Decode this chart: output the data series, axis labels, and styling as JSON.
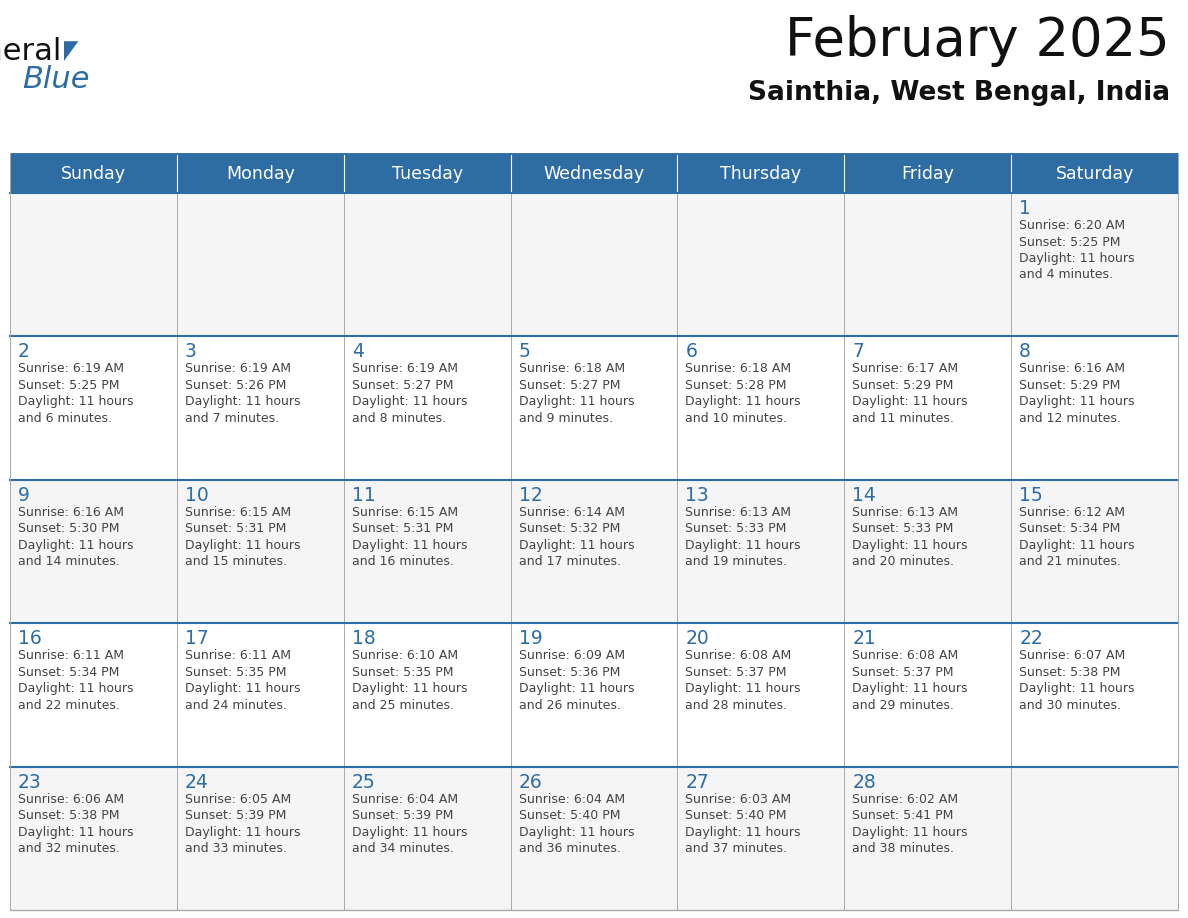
{
  "title": "February 2025",
  "subtitle": "Sainthia, West Bengal, India",
  "header_bg": "#2E6DA4",
  "header_text_color": "#FFFFFF",
  "cell_bg_light": "#F5F5F5",
  "cell_bg_white": "#FFFFFF",
  "day_number_color": "#2E6DA4",
  "text_color": "#444444",
  "border_color": "#AAAAAA",
  "line_color": "#2E6DA4",
  "days_of_week": [
    "Sunday",
    "Monday",
    "Tuesday",
    "Wednesday",
    "Thursday",
    "Friday",
    "Saturday"
  ],
  "weeks": [
    [
      {
        "day": null,
        "sunrise": null,
        "sunset": null,
        "daylight": null
      },
      {
        "day": null,
        "sunrise": null,
        "sunset": null,
        "daylight": null
      },
      {
        "day": null,
        "sunrise": null,
        "sunset": null,
        "daylight": null
      },
      {
        "day": null,
        "sunrise": null,
        "sunset": null,
        "daylight": null
      },
      {
        "day": null,
        "sunrise": null,
        "sunset": null,
        "daylight": null
      },
      {
        "day": null,
        "sunrise": null,
        "sunset": null,
        "daylight": null
      },
      {
        "day": 1,
        "sunrise": "6:20 AM",
        "sunset": "5:25 PM",
        "daylight": "11 hours\nand 4 minutes."
      }
    ],
    [
      {
        "day": 2,
        "sunrise": "6:19 AM",
        "sunset": "5:25 PM",
        "daylight": "11 hours\nand 6 minutes."
      },
      {
        "day": 3,
        "sunrise": "6:19 AM",
        "sunset": "5:26 PM",
        "daylight": "11 hours\nand 7 minutes."
      },
      {
        "day": 4,
        "sunrise": "6:19 AM",
        "sunset": "5:27 PM",
        "daylight": "11 hours\nand 8 minutes."
      },
      {
        "day": 5,
        "sunrise": "6:18 AM",
        "sunset": "5:27 PM",
        "daylight": "11 hours\nand 9 minutes."
      },
      {
        "day": 6,
        "sunrise": "6:18 AM",
        "sunset": "5:28 PM",
        "daylight": "11 hours\nand 10 minutes."
      },
      {
        "day": 7,
        "sunrise": "6:17 AM",
        "sunset": "5:29 PM",
        "daylight": "11 hours\nand 11 minutes."
      },
      {
        "day": 8,
        "sunrise": "6:16 AM",
        "sunset": "5:29 PM",
        "daylight": "11 hours\nand 12 minutes."
      }
    ],
    [
      {
        "day": 9,
        "sunrise": "6:16 AM",
        "sunset": "5:30 PM",
        "daylight": "11 hours\nand 14 minutes."
      },
      {
        "day": 10,
        "sunrise": "6:15 AM",
        "sunset": "5:31 PM",
        "daylight": "11 hours\nand 15 minutes."
      },
      {
        "day": 11,
        "sunrise": "6:15 AM",
        "sunset": "5:31 PM",
        "daylight": "11 hours\nand 16 minutes."
      },
      {
        "day": 12,
        "sunrise": "6:14 AM",
        "sunset": "5:32 PM",
        "daylight": "11 hours\nand 17 minutes."
      },
      {
        "day": 13,
        "sunrise": "6:13 AM",
        "sunset": "5:33 PM",
        "daylight": "11 hours\nand 19 minutes."
      },
      {
        "day": 14,
        "sunrise": "6:13 AM",
        "sunset": "5:33 PM",
        "daylight": "11 hours\nand 20 minutes."
      },
      {
        "day": 15,
        "sunrise": "6:12 AM",
        "sunset": "5:34 PM",
        "daylight": "11 hours\nand 21 minutes."
      }
    ],
    [
      {
        "day": 16,
        "sunrise": "6:11 AM",
        "sunset": "5:34 PM",
        "daylight": "11 hours\nand 22 minutes."
      },
      {
        "day": 17,
        "sunrise": "6:11 AM",
        "sunset": "5:35 PM",
        "daylight": "11 hours\nand 24 minutes."
      },
      {
        "day": 18,
        "sunrise": "6:10 AM",
        "sunset": "5:35 PM",
        "daylight": "11 hours\nand 25 minutes."
      },
      {
        "day": 19,
        "sunrise": "6:09 AM",
        "sunset": "5:36 PM",
        "daylight": "11 hours\nand 26 minutes."
      },
      {
        "day": 20,
        "sunrise": "6:08 AM",
        "sunset": "5:37 PM",
        "daylight": "11 hours\nand 28 minutes."
      },
      {
        "day": 21,
        "sunrise": "6:08 AM",
        "sunset": "5:37 PM",
        "daylight": "11 hours\nand 29 minutes."
      },
      {
        "day": 22,
        "sunrise": "6:07 AM",
        "sunset": "5:38 PM",
        "daylight": "11 hours\nand 30 minutes."
      }
    ],
    [
      {
        "day": 23,
        "sunrise": "6:06 AM",
        "sunset": "5:38 PM",
        "daylight": "11 hours\nand 32 minutes."
      },
      {
        "day": 24,
        "sunrise": "6:05 AM",
        "sunset": "5:39 PM",
        "daylight": "11 hours\nand 33 minutes."
      },
      {
        "day": 25,
        "sunrise": "6:04 AM",
        "sunset": "5:39 PM",
        "daylight": "11 hours\nand 34 minutes."
      },
      {
        "day": 26,
        "sunrise": "6:04 AM",
        "sunset": "5:40 PM",
        "daylight": "11 hours\nand 36 minutes."
      },
      {
        "day": 27,
        "sunrise": "6:03 AM",
        "sunset": "5:40 PM",
        "daylight": "11 hours\nand 37 minutes."
      },
      {
        "day": 28,
        "sunrise": "6:02 AM",
        "sunset": "5:41 PM",
        "daylight": "11 hours\nand 38 minutes."
      },
      {
        "day": null,
        "sunrise": null,
        "sunset": null,
        "daylight": null
      }
    ]
  ]
}
